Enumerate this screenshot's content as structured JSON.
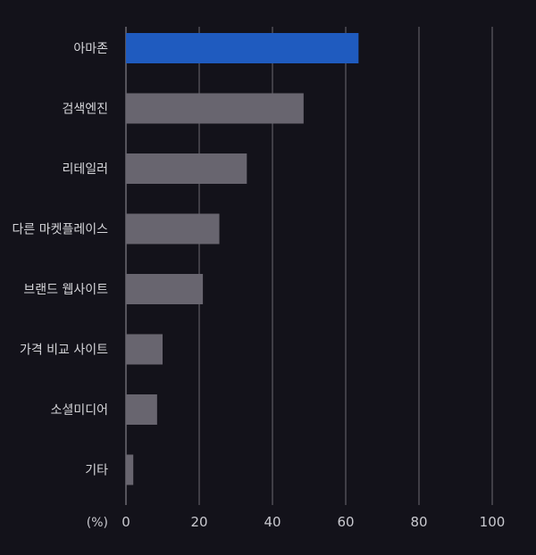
{
  "chart_data": {
    "type": "bar",
    "orientation": "horizontal",
    "categories": [
      "아마존",
      "검색엔진",
      "리테일러",
      "다른 마켓플레이스",
      "브랜드 웹사이트",
      "가격 비교 사이트",
      "소셜미디어",
      "기타"
    ],
    "values": [
      63.5,
      48.5,
      33,
      25.5,
      21,
      10,
      8.5,
      2
    ],
    "highlight_index": 0,
    "colors": {
      "highlight": "#1f5bbf",
      "bar": "#68656f",
      "grid": "#6c6a73",
      "background": "#13121a"
    },
    "xlim": [
      0,
      100
    ],
    "xticks": [
      0,
      20,
      40,
      60,
      80,
      100
    ],
    "xlabel": "(%)",
    "grid": "vertical"
  }
}
